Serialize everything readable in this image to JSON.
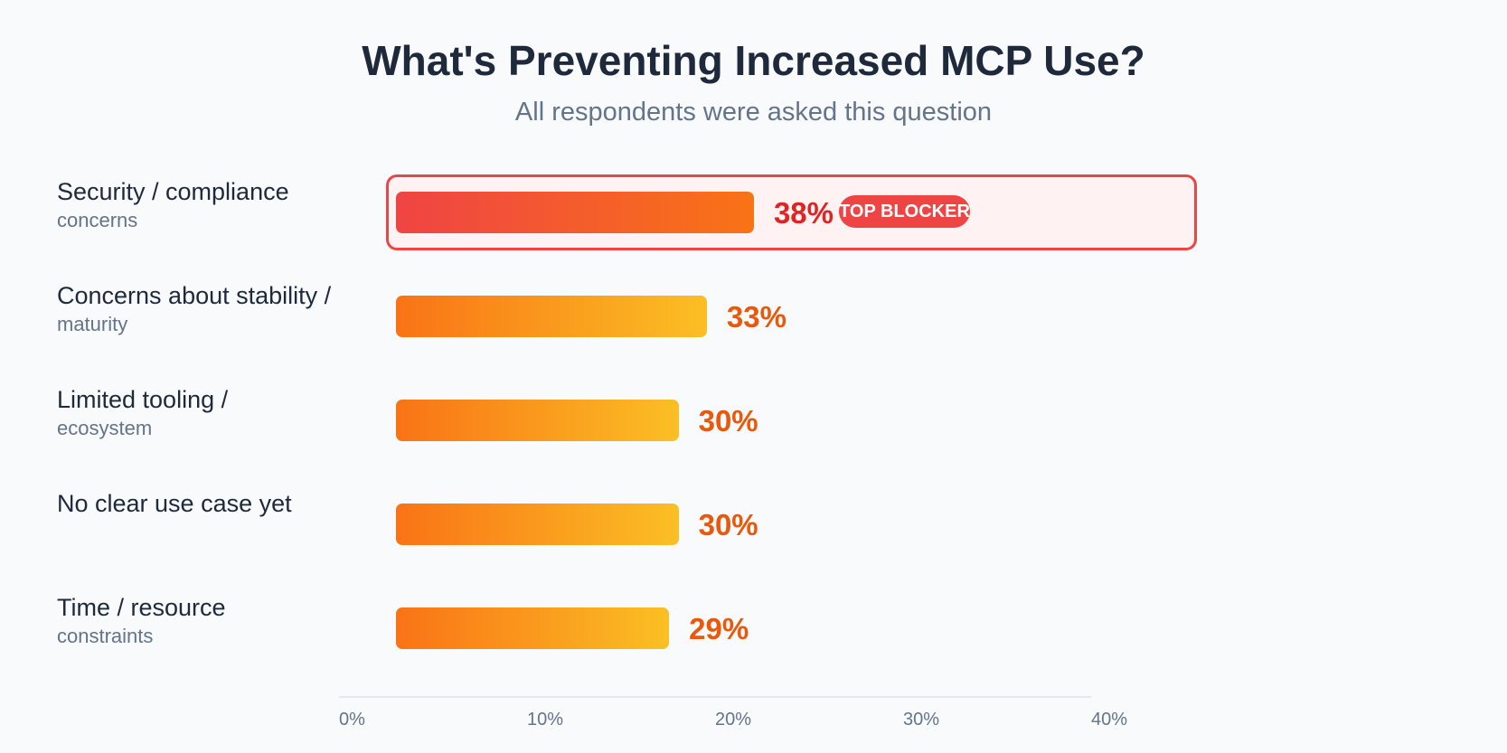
{
  "chart_data": {
    "type": "bar",
    "orientation": "horizontal",
    "title": "What's Preventing Increased MCP Use?",
    "subtitle": "All respondents were asked this question",
    "categories": [
      {
        "line1": "Security / compliance",
        "line2": "concerns"
      },
      {
        "line1": "Concerns about stability /",
        "line2": "maturity"
      },
      {
        "line1": "Limited tooling /",
        "line2": "ecosystem"
      },
      {
        "line1": "No clear use case yet",
        "line2": ""
      },
      {
        "line1": "Time / resource",
        "line2": "constraints"
      }
    ],
    "values": [
      38,
      33,
      30,
      30,
      29
    ],
    "value_labels": [
      "38%",
      "33%",
      "30%",
      "30%",
      "29%"
    ],
    "highlight_index": 0,
    "highlight_badge": "TOP BLOCKER",
    "xlim": [
      0,
      40
    ],
    "x_ticks": [
      "0%",
      "10%",
      "20%",
      "30%",
      "40%"
    ],
    "colors": {
      "highlight": "#ef4444",
      "bar_start": "#f97316",
      "bar_end": "#fbbf24",
      "value": "#ea580c"
    }
  }
}
